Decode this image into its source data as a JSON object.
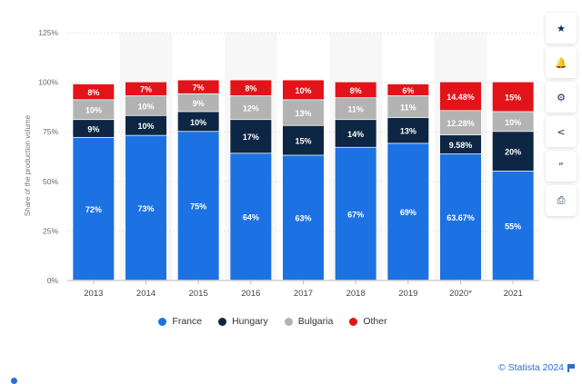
{
  "chart_data": {
    "type": "bar",
    "stacked": true,
    "categories": [
      "2013",
      "2014",
      "2015",
      "2016",
      "2017",
      "2018",
      "2019",
      "2020*",
      "2021"
    ],
    "series": [
      {
        "name": "France",
        "color": "#1c72e3",
        "values": [
          72,
          73,
          75,
          64,
          63,
          67,
          69,
          63.67,
          55
        ],
        "labels": [
          "72%",
          "73%",
          "75%",
          "64%",
          "63%",
          "67%",
          "69%",
          "63.67%",
          "55%"
        ]
      },
      {
        "name": "Hungary",
        "color": "#0d2643",
        "values": [
          9,
          10,
          10,
          17,
          15,
          14,
          13,
          9.58,
          20
        ],
        "labels": [
          "9%",
          "10%",
          "10%",
          "17%",
          "15%",
          "14%",
          "13%",
          "9.58%",
          "20%"
        ]
      },
      {
        "name": "Bulgaria",
        "color": "#b3b3b3",
        "values": [
          10,
          10,
          9,
          12,
          13,
          11,
          11,
          12.28,
          10
        ],
        "labels": [
          "10%",
          "10%",
          "9%",
          "12%",
          "13%",
          "11%",
          "11%",
          "12.28%",
          "10%"
        ]
      },
      {
        "name": "Other",
        "color": "#e3131a",
        "values": [
          8,
          7,
          7,
          8,
          10,
          8,
          6,
          14.48,
          15
        ],
        "labels": [
          "8%",
          "7%",
          "7%",
          "8%",
          "10%",
          "8%",
          "6%",
          "14.48%",
          "15%"
        ]
      }
    ],
    "ylabel": "Share of the production volume",
    "xlabel": "",
    "ylim": [
      0,
      125
    ],
    "yticks": [
      0,
      25,
      50,
      75,
      100,
      125
    ],
    "ytick_labels": [
      "0%",
      "25%",
      "50%",
      "75%",
      "100%",
      "125%"
    ],
    "grid": true,
    "legend_position": "bottom"
  },
  "toolbar": {
    "items": [
      {
        "icon": "star-icon",
        "glyph": "★"
      },
      {
        "icon": "bell-icon",
        "glyph": "🔔"
      },
      {
        "icon": "gear-icon",
        "glyph": "⚙"
      },
      {
        "icon": "share-icon",
        "glyph": "<"
      },
      {
        "icon": "quote-icon",
        "glyph": "“"
      },
      {
        "icon": "print-icon",
        "glyph": "⎙"
      }
    ]
  },
  "footer": {
    "source": "© Statista 2024"
  }
}
